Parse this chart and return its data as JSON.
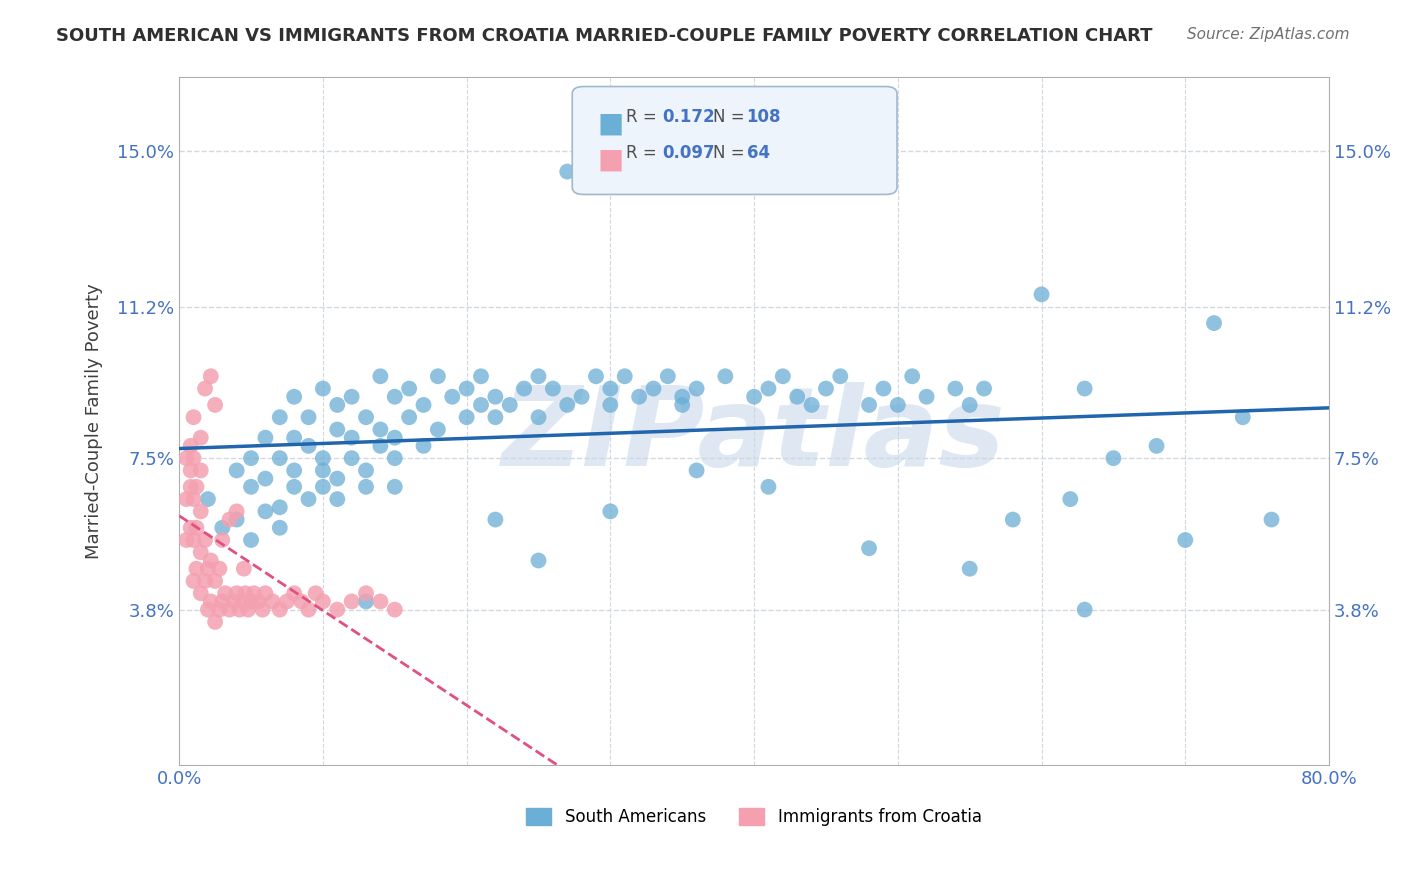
{
  "title": "SOUTH AMERICAN VS IMMIGRANTS FROM CROATIA MARRIED-COUPLE FAMILY POVERTY CORRELATION CHART",
  "source": "Source: ZipAtlas.com",
  "ylabel": "Married-Couple Family Poverty",
  "xlim": [
    0,
    0.8
  ],
  "ylim": [
    0,
    0.168
  ],
  "yticks": [
    0.038,
    0.075,
    0.112,
    0.15
  ],
  "ytick_labels": [
    "3.8%",
    "7.5%",
    "11.2%",
    "15.0%"
  ],
  "xticks": [
    0.0,
    0.1,
    0.2,
    0.3,
    0.4,
    0.5,
    0.6,
    0.7,
    0.8
  ],
  "xtick_labels": [
    "0.0%",
    "",
    "",
    "",
    "",
    "",
    "",
    "",
    "80.0%"
  ],
  "blue_R": 0.172,
  "blue_N": 108,
  "pink_R": 0.097,
  "pink_N": 64,
  "blue_color": "#6baed6",
  "pink_color": "#f4a0b0",
  "blue_line_color": "#2166ac",
  "pink_line_color": "#e05080",
  "watermark_color": "#c8d8ea",
  "grid_color": "#d0d8e0",
  "blue_x": [
    0.02,
    0.03,
    0.04,
    0.04,
    0.05,
    0.05,
    0.05,
    0.06,
    0.06,
    0.06,
    0.07,
    0.07,
    0.07,
    0.07,
    0.08,
    0.08,
    0.08,
    0.08,
    0.09,
    0.09,
    0.09,
    0.1,
    0.1,
    0.1,
    0.1,
    0.11,
    0.11,
    0.11,
    0.11,
    0.12,
    0.12,
    0.12,
    0.13,
    0.13,
    0.13,
    0.14,
    0.14,
    0.14,
    0.15,
    0.15,
    0.15,
    0.15,
    0.16,
    0.16,
    0.17,
    0.17,
    0.18,
    0.18,
    0.19,
    0.2,
    0.2,
    0.21,
    0.21,
    0.22,
    0.22,
    0.23,
    0.24,
    0.25,
    0.25,
    0.26,
    0.27,
    0.28,
    0.29,
    0.3,
    0.3,
    0.31,
    0.32,
    0.33,
    0.34,
    0.35,
    0.35,
    0.36,
    0.38,
    0.4,
    0.41,
    0.42,
    0.43,
    0.44,
    0.45,
    0.46,
    0.48,
    0.49,
    0.5,
    0.51,
    0.52,
    0.54,
    0.55,
    0.56,
    0.58,
    0.6,
    0.62,
    0.63,
    0.65,
    0.68,
    0.7,
    0.72,
    0.74,
    0.76,
    0.36,
    0.27,
    0.13,
    0.48,
    0.3,
    0.55,
    0.22,
    0.41,
    0.63,
    0.25
  ],
  "blue_y": [
    0.065,
    0.058,
    0.072,
    0.06,
    0.068,
    0.075,
    0.055,
    0.08,
    0.062,
    0.07,
    0.085,
    0.058,
    0.075,
    0.063,
    0.09,
    0.068,
    0.072,
    0.08,
    0.078,
    0.065,
    0.085,
    0.092,
    0.072,
    0.068,
    0.075,
    0.088,
    0.07,
    0.082,
    0.065,
    0.08,
    0.075,
    0.09,
    0.085,
    0.072,
    0.068,
    0.095,
    0.078,
    0.082,
    0.08,
    0.09,
    0.075,
    0.068,
    0.085,
    0.092,
    0.078,
    0.088,
    0.082,
    0.095,
    0.09,
    0.085,
    0.092,
    0.088,
    0.095,
    0.085,
    0.09,
    0.088,
    0.092,
    0.085,
    0.095,
    0.092,
    0.088,
    0.09,
    0.095,
    0.092,
    0.088,
    0.095,
    0.09,
    0.092,
    0.095,
    0.09,
    0.088,
    0.092,
    0.095,
    0.09,
    0.092,
    0.095,
    0.09,
    0.088,
    0.092,
    0.095,
    0.088,
    0.092,
    0.088,
    0.095,
    0.09,
    0.092,
    0.088,
    0.092,
    0.06,
    0.115,
    0.065,
    0.092,
    0.075,
    0.078,
    0.055,
    0.108,
    0.085,
    0.06,
    0.072,
    0.145,
    0.04,
    0.053,
    0.062,
    0.048,
    0.06,
    0.068,
    0.038,
    0.05
  ],
  "pink_x": [
    0.005,
    0.005,
    0.005,
    0.008,
    0.008,
    0.008,
    0.01,
    0.01,
    0.01,
    0.01,
    0.012,
    0.012,
    0.012,
    0.015,
    0.015,
    0.015,
    0.015,
    0.018,
    0.018,
    0.02,
    0.02,
    0.022,
    0.022,
    0.025,
    0.025,
    0.028,
    0.028,
    0.03,
    0.032,
    0.035,
    0.038,
    0.04,
    0.042,
    0.044,
    0.046,
    0.048,
    0.05,
    0.052,
    0.055,
    0.058,
    0.06,
    0.065,
    0.07,
    0.075,
    0.08,
    0.085,
    0.09,
    0.095,
    0.1,
    0.11,
    0.12,
    0.13,
    0.14,
    0.15,
    0.01,
    0.018,
    0.025,
    0.035,
    0.045,
    0.008,
    0.015,
    0.022,
    0.03,
    0.04
  ],
  "pink_y": [
    0.055,
    0.065,
    0.075,
    0.058,
    0.068,
    0.078,
    0.045,
    0.055,
    0.065,
    0.075,
    0.048,
    0.058,
    0.068,
    0.042,
    0.052,
    0.062,
    0.072,
    0.045,
    0.055,
    0.038,
    0.048,
    0.04,
    0.05,
    0.035,
    0.045,
    0.038,
    0.048,
    0.04,
    0.042,
    0.038,
    0.04,
    0.042,
    0.038,
    0.04,
    0.042,
    0.038,
    0.04,
    0.042,
    0.04,
    0.038,
    0.042,
    0.04,
    0.038,
    0.04,
    0.042,
    0.04,
    0.038,
    0.042,
    0.04,
    0.038,
    0.04,
    0.042,
    0.04,
    0.038,
    0.085,
    0.092,
    0.088,
    0.06,
    0.048,
    0.072,
    0.08,
    0.095,
    0.055,
    0.062
  ]
}
